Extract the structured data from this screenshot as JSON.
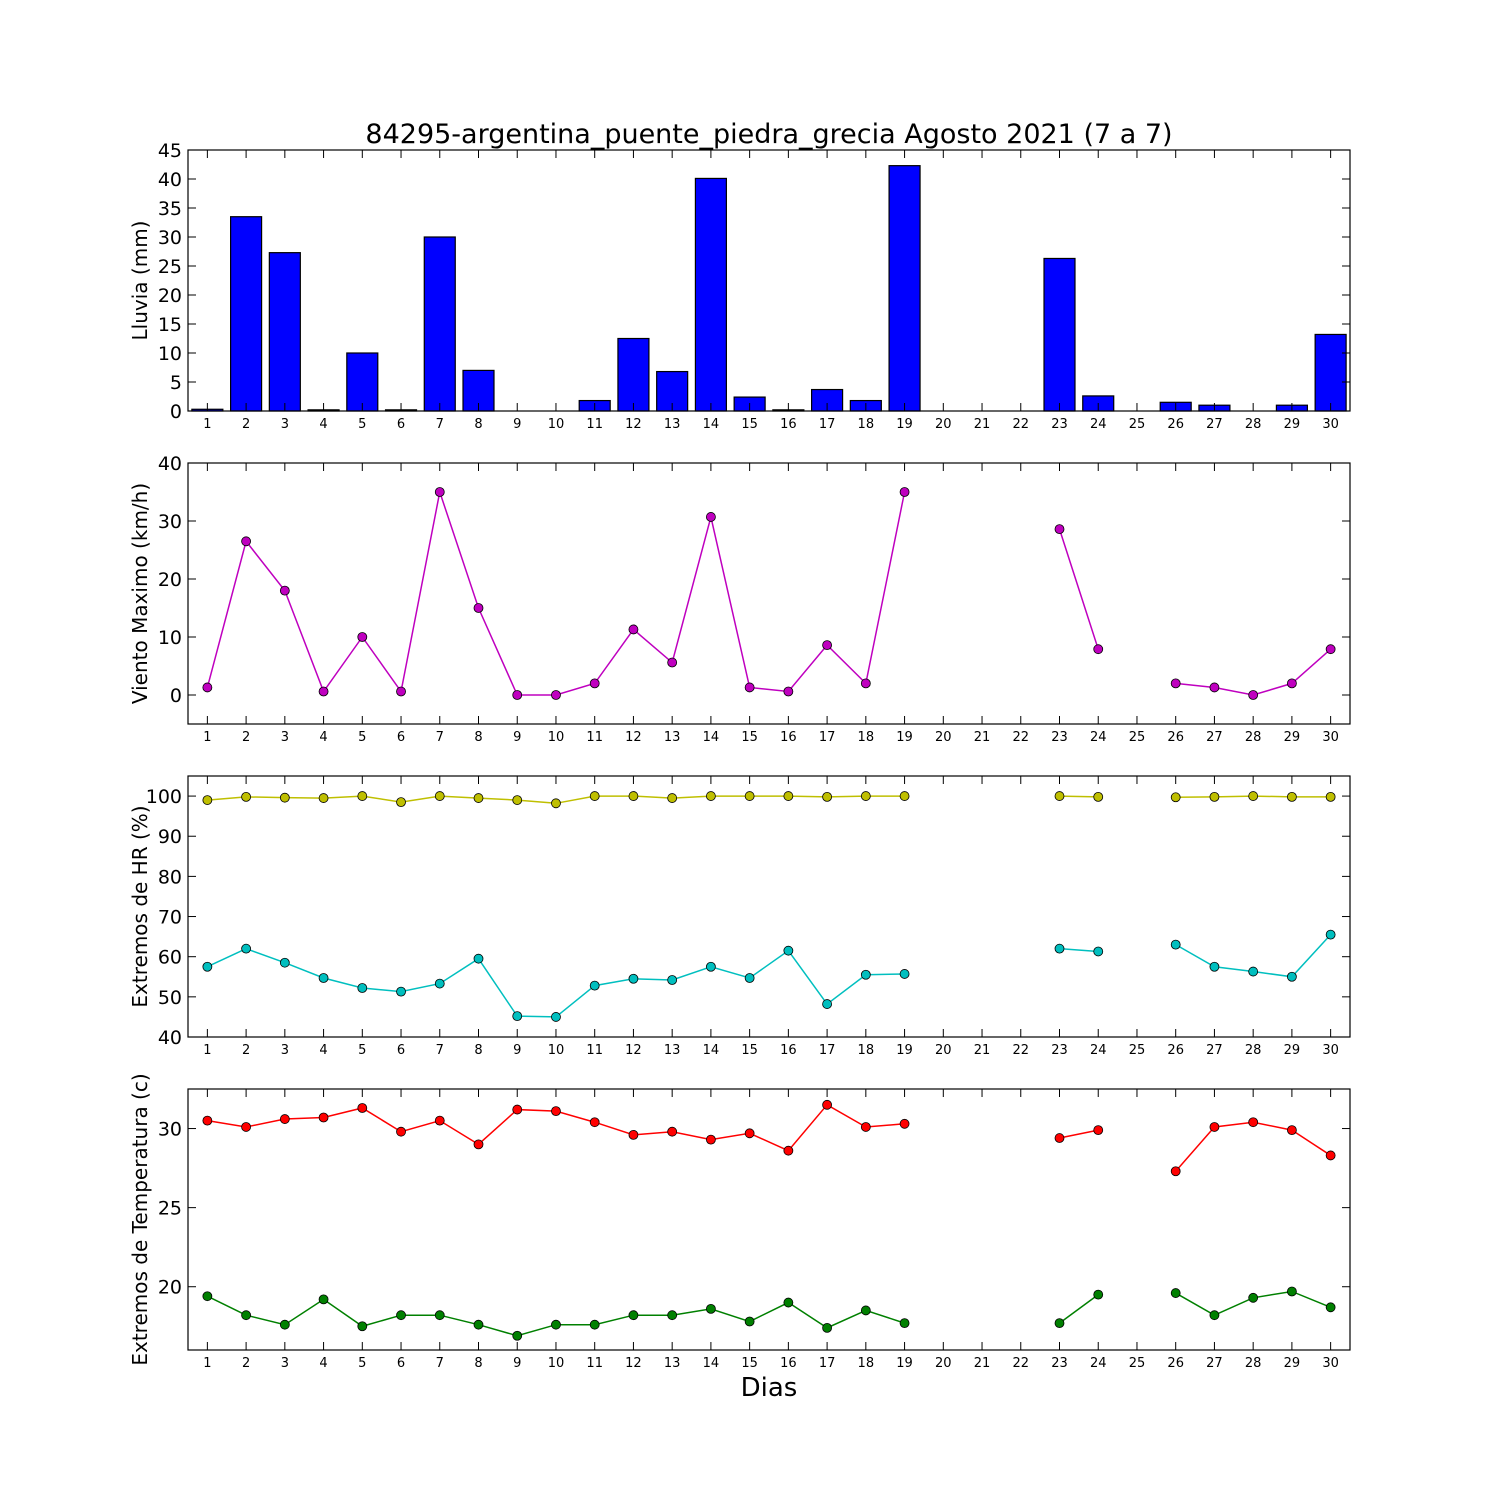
{
  "title": "84295-argentina_puente_piedra_grecia Agosto 2021  (7 a 7)",
  "xlabel": "Dias",
  "days": [
    1,
    2,
    3,
    4,
    5,
    6,
    7,
    8,
    9,
    10,
    11,
    12,
    13,
    14,
    15,
    16,
    17,
    18,
    19,
    20,
    21,
    22,
    23,
    24,
    25,
    26,
    27,
    28,
    29,
    30
  ],
  "chart_data": [
    {
      "type": "bar",
      "ylabel": "Lluvia (mm)",
      "ylim": [
        0,
        45
      ],
      "yticks": [
        0,
        5,
        10,
        15,
        20,
        25,
        30,
        35,
        40,
        45
      ],
      "categories": [
        1,
        2,
        3,
        4,
        5,
        6,
        7,
        8,
        9,
        10,
        11,
        12,
        13,
        14,
        15,
        16,
        17,
        18,
        19,
        20,
        21,
        22,
        23,
        24,
        25,
        26,
        27,
        28,
        29,
        30
      ],
      "series": [
        {
          "color": "#0000ff",
          "values": [
            0.3,
            33.5,
            27.3,
            0.2,
            10.0,
            0.2,
            30.0,
            7.0,
            0.0,
            0.0,
            1.8,
            12.5,
            6.8,
            40.1,
            2.4,
            0.2,
            3.7,
            1.8,
            42.3,
            0.0,
            0.0,
            0.0,
            26.3,
            2.6,
            0.0,
            1.5,
            1.0,
            0.0,
            1.0,
            13.2
          ]
        }
      ]
    },
    {
      "type": "line",
      "ylabel": "Viento Maximo (km/h)",
      "ylim": [
        -5,
        40
      ],
      "yticks": [
        0,
        10,
        20,
        30,
        40
      ],
      "x": [
        1,
        2,
        3,
        4,
        5,
        6,
        7,
        8,
        9,
        10,
        11,
        12,
        13,
        14,
        15,
        16,
        17,
        18,
        19,
        20,
        21,
        22,
        23,
        24,
        25,
        26,
        27,
        28,
        29,
        30
      ],
      "series": [
        {
          "color": "#bf00bf",
          "values": [
            1.3,
            26.5,
            18.0,
            0.6,
            10.0,
            0.6,
            35.0,
            15.0,
            0.0,
            0.0,
            2.0,
            11.3,
            5.6,
            30.7,
            1.3,
            0.6,
            8.6,
            2.0,
            35.0,
            null,
            null,
            null,
            28.6,
            7.9,
            null,
            2.0,
            1.3,
            0.0,
            2.0,
            7.9
          ]
        }
      ]
    },
    {
      "type": "line",
      "ylabel": "Extremos de HR (%)",
      "ylim": [
        40,
        105
      ],
      "yticks": [
        40,
        50,
        60,
        70,
        80,
        90,
        100
      ],
      "x": [
        1,
        2,
        3,
        4,
        5,
        6,
        7,
        8,
        9,
        10,
        11,
        12,
        13,
        14,
        15,
        16,
        17,
        18,
        19,
        20,
        21,
        22,
        23,
        24,
        25,
        26,
        27,
        28,
        29,
        30
      ],
      "series": [
        {
          "color": "#bfbf00",
          "values": [
            99,
            99.8,
            99.6,
            99.5,
            100,
            98.5,
            100,
            99.5,
            99,
            98.2,
            100,
            100,
            99.5,
            100,
            100,
            100,
            99.8,
            100,
            100,
            null,
            null,
            null,
            100,
            99.8,
            null,
            99.7,
            99.8,
            100,
            99.8,
            99.8
          ]
        },
        {
          "color": "#00bfbf",
          "values": [
            57.5,
            62,
            58.5,
            54.7,
            52.2,
            51.3,
            53.3,
            59.5,
            45.2,
            45,
            52.8,
            54.5,
            54.2,
            57.5,
            54.7,
            61.5,
            48.2,
            55.5,
            55.7,
            null,
            null,
            null,
            62,
            61.3,
            null,
            63,
            57.5,
            56.3,
            55,
            65.5
          ]
        }
      ]
    },
    {
      "type": "line",
      "ylabel": "Extremos de Temperatura (c)",
      "ylim": [
        16,
        32.5
      ],
      "yticks": [
        20,
        25,
        30
      ],
      "x": [
        1,
        2,
        3,
        4,
        5,
        6,
        7,
        8,
        9,
        10,
        11,
        12,
        13,
        14,
        15,
        16,
        17,
        18,
        19,
        20,
        21,
        22,
        23,
        24,
        25,
        26,
        27,
        28,
        29,
        30
      ],
      "series": [
        {
          "color": "#ff0000",
          "values": [
            30.5,
            30.1,
            30.6,
            30.7,
            31.3,
            29.8,
            30.5,
            29.0,
            31.2,
            31.1,
            30.4,
            29.6,
            29.8,
            29.3,
            29.7,
            28.6,
            31.5,
            30.1,
            30.3,
            null,
            null,
            null,
            29.4,
            29.9,
            null,
            27.3,
            30.1,
            30.4,
            29.9,
            28.3
          ]
        },
        {
          "color": "#008000",
          "values": [
            19.4,
            18.2,
            17.6,
            19.2,
            17.5,
            18.2,
            18.2,
            17.6,
            16.9,
            17.6,
            17.6,
            18.2,
            18.2,
            18.6,
            17.8,
            19.0,
            17.4,
            18.5,
            17.7,
            null,
            null,
            null,
            17.7,
            19.5,
            null,
            19.6,
            18.2,
            19.3,
            19.7,
            18.7
          ]
        }
      ]
    }
  ]
}
